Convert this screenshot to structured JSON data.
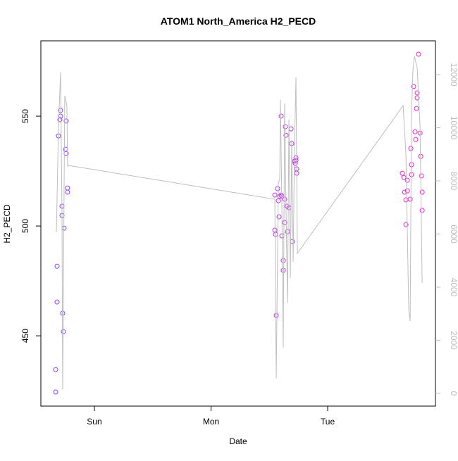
{
  "chart_data": {
    "type": "scatter",
    "title": "ATOM1 North_America H2_PECD",
    "x_label": "Date",
    "y_label": "H2_PECD",
    "xlim": [
      -0.459,
      2.924
    ],
    "xticks": [
      {
        "value": 0,
        "label": "Sun"
      },
      {
        "value": 1,
        "label": "Mon"
      },
      {
        "value": 2,
        "label": "Tue"
      }
    ],
    "ylim": [
      418.0,
      584.3
    ],
    "yticks": [
      450,
      500,
      550
    ],
    "y2lim": [
      -477,
      13272
    ],
    "y2ticks": [
      0,
      2000,
      4000,
      6000,
      8000,
      10000,
      12000
    ],
    "series": [
      {
        "color": "#8a3cff",
        "x": [
          -0.332,
          -0.332,
          -0.32,
          -0.32,
          -0.308,
          -0.296,
          -0.29,
          -0.29,
          -0.278,
          -0.278,
          -0.272,
          -0.266,
          -0.26,
          -0.248,
          -0.242,
          -0.242,
          -0.23,
          -0.23
        ],
        "values": [
          424.4,
          434.6,
          465.4,
          481.7,
          541.0,
          548.4,
          552.6,
          550.0,
          509.0,
          504.8,
          460.3,
          451.9,
          499.0,
          534.9,
          547.8,
          533.0,
          517.3,
          515.4
        ]
      },
      {
        "color": "#c030f0",
        "x": [
          1.547,
          1.553,
          1.559,
          1.547,
          1.571,
          1.583,
          1.577,
          1.589,
          1.601,
          1.607,
          1.601,
          1.607,
          1.619,
          1.619,
          1.631,
          1.631,
          1.637,
          1.643,
          1.65,
          1.656,
          1.668,
          1.686,
          1.692,
          1.698,
          1.716,
          1.722,
          1.728,
          1.728,
          1.734,
          1.734
        ],
        "values": [
          498.1,
          496.2,
          459.3,
          514.1,
          517.0,
          504.2,
          511.5,
          513.5,
          514.1,
          513.5,
          550.0,
          495.5,
          484.3,
          479.8,
          501.6,
          512.2,
          545.2,
          541.3,
          509.0,
          497.4,
          508.3,
          544.2,
          537.5,
          492.9,
          529.5,
          528.5,
          531.1,
          529.8,
          526.0,
          524.0
        ]
      },
      {
        "color": "#ee22d0",
        "x": [
          2.64,
          2.653,
          2.659,
          2.671,
          2.671,
          2.683,
          2.683,
          2.707,
          2.713,
          2.719,
          2.719,
          2.737,
          2.749,
          2.755,
          2.761,
          2.767,
          2.767,
          2.779,
          2.792,
          2.798,
          2.804,
          2.81,
          2.81
        ],
        "values": [
          524.0,
          522.1,
          515.4,
          511.9,
          500.6,
          520.8,
          516.0,
          512.2,
          535.3,
          527.9,
          523.4,
          563.5,
          542.9,
          539.4,
          553.5,
          560.6,
          558.3,
          578.2,
          542.3,
          531.7,
          522.8,
          515.4,
          507.1
        ]
      },
      {
        "color": "#bebebe",
        "axis": "y2",
        "kind": "line",
        "x": [
          -0.326,
          -0.308,
          -0.29,
          -0.278,
          -0.272,
          -0.254,
          -0.236,
          -0.23,
          -0.224,
          1.547,
          1.559,
          1.577,
          1.589,
          1.595,
          1.607,
          1.619,
          1.631,
          1.643,
          1.656,
          1.668,
          1.68,
          1.692,
          1.704,
          1.716,
          1.728,
          1.74,
          2.647,
          2.671,
          2.695,
          2.707,
          2.719,
          2.731,
          2.743,
          2.767,
          2.792,
          2.81
        ],
        "values": [
          6066,
          10040,
          12079,
          6861,
          159,
          11205,
          10834,
          8556,
          8583,
          7311,
          556,
          7921,
          8053,
          11046,
          7126,
          1722,
          10914,
          6861,
          3417,
          10305,
          4344,
          9536,
          4954,
          9377,
          11894,
          5272,
          10834,
          8980,
          3152,
          2728,
          10570,
          12185,
          12689,
          12291,
          10040,
          4159
        ]
      }
    ]
  }
}
